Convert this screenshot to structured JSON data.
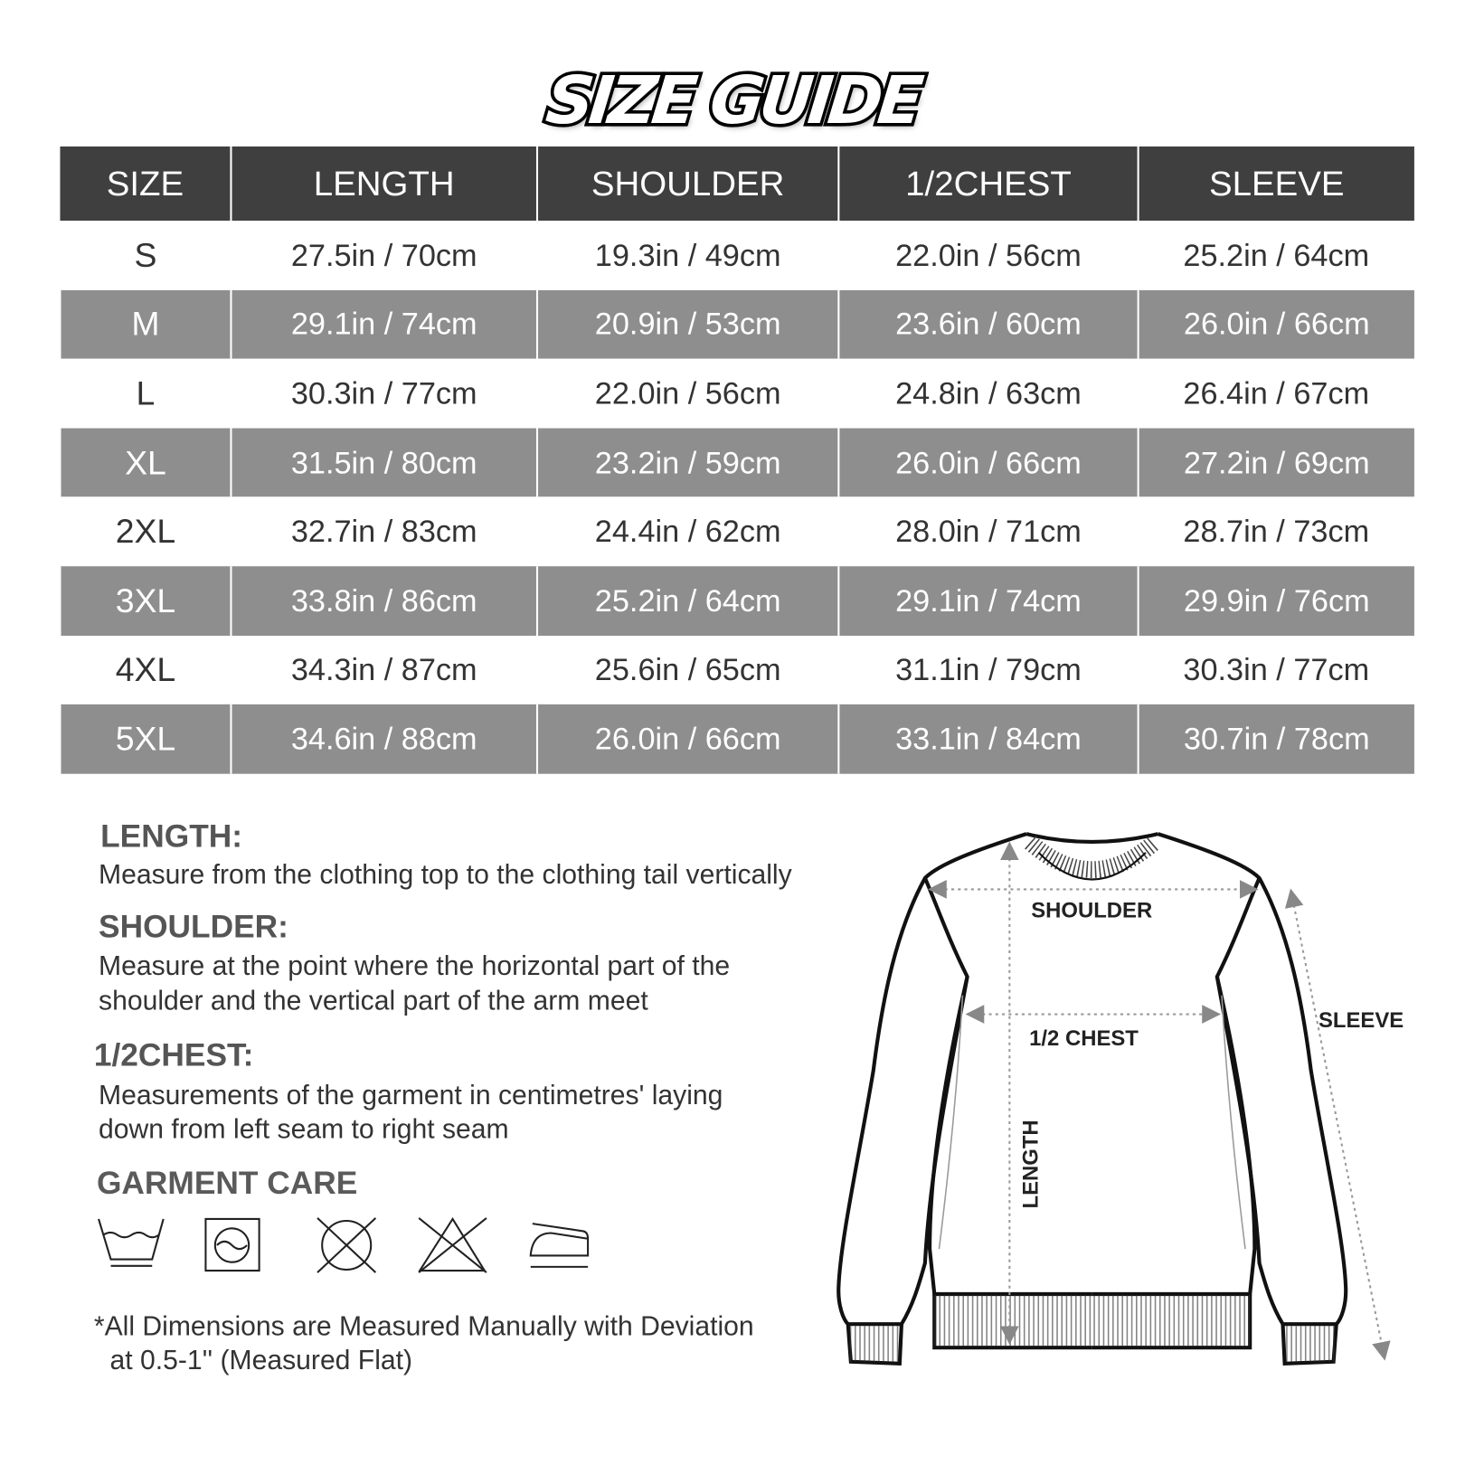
{
  "title": "SIZE GUIDE",
  "table": {
    "headers": [
      "SIZE",
      "LENGTH",
      "SHOULDER",
      "1/2CHEST",
      "SLEEVE"
    ],
    "rows": [
      [
        "S",
        "27.5in / 70cm",
        "19.3in / 49cm",
        "22.0in / 56cm",
        "25.2in / 64cm"
      ],
      [
        "M",
        "29.1in / 74cm",
        "20.9in / 53cm",
        "23.6in / 60cm",
        "26.0in / 66cm"
      ],
      [
        "L",
        "30.3in / 77cm",
        "22.0in / 56cm",
        "24.8in / 63cm",
        "26.4in / 67cm"
      ],
      [
        "XL",
        "31.5in / 80cm",
        "23.2in / 59cm",
        "26.0in / 66cm",
        "27.2in / 69cm"
      ],
      [
        "2XL",
        "32.7in / 83cm",
        "24.4in / 62cm",
        "28.0in / 71cm",
        "28.7in / 73cm"
      ],
      [
        "3XL",
        "33.8in / 86cm",
        "25.2in / 64cm",
        "29.1in / 74cm",
        "29.9in / 76cm"
      ],
      [
        "4XL",
        "34.3in / 87cm",
        "25.6in / 65cm",
        "31.1in / 79cm",
        "30.3in / 77cm"
      ],
      [
        "5XL",
        "34.6in / 88cm",
        "26.0in / 66cm",
        "33.1in / 84cm",
        "30.7in / 78cm"
      ]
    ],
    "colors": {
      "header_bg": "#3f3f3f",
      "alt_row_bg": "#8e8e8e"
    }
  },
  "definitions": {
    "length": {
      "heading": "LENGTH:",
      "lines": [
        "Measure from the clothing top to the clothing tail vertically"
      ]
    },
    "shoulder": {
      "heading": "SHOULDER:",
      "lines": [
        "Measure at the point where the horizontal part of the",
        "shoulder and the vertical part of the arm meet"
      ]
    },
    "chest": {
      "heading": "1/2CHEST:",
      "lines": [
        "Measurements of the garment in centimetres' laying",
        "down from left seam to right seam"
      ]
    }
  },
  "care": {
    "heading": "GARMENT CARE",
    "icons": [
      "hand-wash-icon",
      "gentle-machine-dry-icon",
      "do-not-tumble-dry-icon",
      "do-not-bleach-icon",
      "iron-icon"
    ]
  },
  "footnote": [
    "*All Dimensions are Measured Manually with Deviation",
    "at 0.5-1''  (Measured Flat)"
  ],
  "diagram": {
    "shoulder": "SHOULDER",
    "chest": "1/2 CHEST",
    "length": "LENGTH",
    "sleeve": "SLEEVE"
  }
}
